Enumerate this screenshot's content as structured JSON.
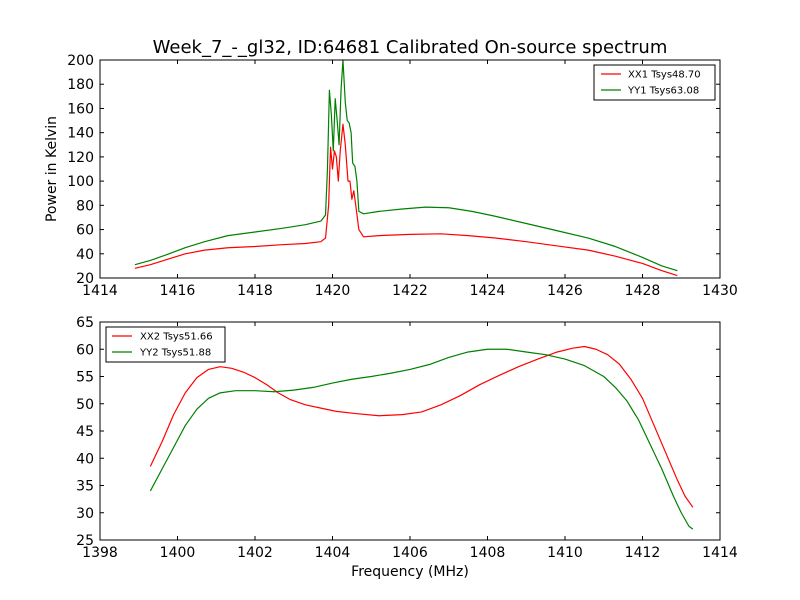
{
  "chart_data": [
    {
      "type": "line",
      "title": "Week_7_-_gl32, ID:64681 Calibrated On-source spectrum",
      "xlabel": "",
      "ylabel": "Power in Kelvin",
      "xlim": [
        1414,
        1430
      ],
      "ylim": [
        20,
        200
      ],
      "xticks": [
        1414,
        1416,
        1418,
        1420,
        1422,
        1424,
        1426,
        1428,
        1430
      ],
      "yticks": [
        20,
        40,
        60,
        80,
        100,
        120,
        140,
        160,
        180,
        200
      ],
      "grid": false,
      "legend": "top-right",
      "series": [
        {
          "name": "XX1 Tsys48.70",
          "color": "#ff0000",
          "points": [
            [
              1414.9,
              28
            ],
            [
              1415.3,
              31
            ],
            [
              1415.7,
              35
            ],
            [
              1416.2,
              40
            ],
            [
              1416.7,
              43
            ],
            [
              1417.3,
              45
            ],
            [
              1418.0,
              46
            ],
            [
              1418.7,
              47.5
            ],
            [
              1419.3,
              48.5
            ],
            [
              1419.7,
              50
            ],
            [
              1419.82,
              53
            ],
            [
              1419.9,
              80
            ],
            [
              1419.95,
              128
            ],
            [
              1420.0,
              110
            ],
            [
              1420.05,
              125
            ],
            [
              1420.1,
              120
            ],
            [
              1420.15,
              100
            ],
            [
              1420.2,
              125
            ],
            [
              1420.27,
              147
            ],
            [
              1420.33,
              130
            ],
            [
              1420.4,
              100
            ],
            [
              1420.45,
              100
            ],
            [
              1420.5,
              85
            ],
            [
              1420.55,
              92
            ],
            [
              1420.6,
              80
            ],
            [
              1420.68,
              60
            ],
            [
              1420.8,
              54
            ],
            [
              1421.2,
              55
            ],
            [
              1422.0,
              56
            ],
            [
              1422.8,
              56.5
            ],
            [
              1423.5,
              55
            ],
            [
              1424.2,
              53
            ],
            [
              1425.0,
              50
            ],
            [
              1425.8,
              46.5
            ],
            [
              1426.6,
              43
            ],
            [
              1427.3,
              38
            ],
            [
              1428.0,
              32
            ],
            [
              1428.5,
              26
            ],
            [
              1428.9,
              22
            ]
          ]
        },
        {
          "name": "YY1 Tsys63.08",
          "color": "#008000",
          "points": [
            [
              1414.9,
              31
            ],
            [
              1415.3,
              34.5
            ],
            [
              1415.7,
              39
            ],
            [
              1416.2,
              45
            ],
            [
              1416.7,
              50
            ],
            [
              1417.3,
              55
            ],
            [
              1418.0,
              58
            ],
            [
              1418.7,
              61
            ],
            [
              1419.3,
              64
            ],
            [
              1419.7,
              67
            ],
            [
              1419.82,
              72
            ],
            [
              1419.87,
              110
            ],
            [
              1419.92,
              175
            ],
            [
              1419.97,
              155
            ],
            [
              1420.02,
              125
            ],
            [
              1420.07,
              168
            ],
            [
              1420.12,
              150
            ],
            [
              1420.17,
              130
            ],
            [
              1420.22,
              175
            ],
            [
              1420.27,
              200
            ],
            [
              1420.33,
              165
            ],
            [
              1420.38,
              150
            ],
            [
              1420.43,
              148
            ],
            [
              1420.48,
              140
            ],
            [
              1420.52,
              115
            ],
            [
              1420.58,
              112
            ],
            [
              1420.63,
              100
            ],
            [
              1420.68,
              75
            ],
            [
              1420.8,
              73
            ],
            [
              1421.2,
              75
            ],
            [
              1421.8,
              77
            ],
            [
              1422.4,
              78.5
            ],
            [
              1423.0,
              78
            ],
            [
              1423.6,
              75
            ],
            [
              1424.2,
              71
            ],
            [
              1425.0,
              65
            ],
            [
              1425.8,
              59
            ],
            [
              1426.6,
              53
            ],
            [
              1427.3,
              46
            ],
            [
              1428.0,
              37
            ],
            [
              1428.5,
              30
            ],
            [
              1428.9,
              26
            ]
          ]
        }
      ]
    },
    {
      "type": "line",
      "title": "",
      "xlabel": "Frequency (MHz)",
      "ylabel": "",
      "xlim": [
        1398,
        1414
      ],
      "ylim": [
        25,
        65
      ],
      "xticks": [
        1398,
        1400,
        1402,
        1404,
        1406,
        1408,
        1410,
        1412,
        1414
      ],
      "yticks": [
        25,
        30,
        35,
        40,
        45,
        50,
        55,
        60,
        65
      ],
      "grid": false,
      "legend": "top-left",
      "series": [
        {
          "name": "XX2 Tsys51.66",
          "color": "#ff0000",
          "points": [
            [
              1399.3,
              38.5
            ],
            [
              1399.6,
              43
            ],
            [
              1399.9,
              48
            ],
            [
              1400.2,
              52
            ],
            [
              1400.5,
              54.8
            ],
            [
              1400.8,
              56.3
            ],
            [
              1401.1,
              56.8
            ],
            [
              1401.4,
              56.5
            ],
            [
              1401.7,
              55.8
            ],
            [
              1402.0,
              54.8
            ],
            [
              1402.3,
              53.5
            ],
            [
              1402.6,
              52
            ],
            [
              1402.9,
              50.8
            ],
            [
              1403.3,
              49.8
            ],
            [
              1403.7,
              49.2
            ],
            [
              1404.1,
              48.6
            ],
            [
              1404.6,
              48.2
            ],
            [
              1405.2,
              47.8
            ],
            [
              1405.8,
              48
            ],
            [
              1406.3,
              48.5
            ],
            [
              1406.8,
              49.8
            ],
            [
              1407.3,
              51.5
            ],
            [
              1407.8,
              53.5
            ],
            [
              1408.3,
              55.2
            ],
            [
              1408.8,
              56.8
            ],
            [
              1409.3,
              58.2
            ],
            [
              1409.8,
              59.5
            ],
            [
              1410.2,
              60.2
            ],
            [
              1410.5,
              60.5
            ],
            [
              1410.8,
              60
            ],
            [
              1411.1,
              59
            ],
            [
              1411.4,
              57.3
            ],
            [
              1411.7,
              54.5
            ],
            [
              1412.0,
              51
            ],
            [
              1412.3,
              46
            ],
            [
              1412.6,
              41
            ],
            [
              1412.9,
              36
            ],
            [
              1413.1,
              33
            ],
            [
              1413.3,
              31
            ]
          ]
        },
        {
          "name": "YY2 Tsys51.88",
          "color": "#008000",
          "points": [
            [
              1399.3,
              34
            ],
            [
              1399.6,
              38
            ],
            [
              1399.9,
              42
            ],
            [
              1400.2,
              46
            ],
            [
              1400.5,
              49
            ],
            [
              1400.8,
              51
            ],
            [
              1401.1,
              52
            ],
            [
              1401.5,
              52.4
            ],
            [
              1402.0,
              52.4
            ],
            [
              1402.5,
              52.2
            ],
            [
              1403.0,
              52.5
            ],
            [
              1403.5,
              53
            ],
            [
              1404.0,
              53.8
            ],
            [
              1404.5,
              54.5
            ],
            [
              1405.0,
              55
            ],
            [
              1405.5,
              55.6
            ],
            [
              1406.0,
              56.3
            ],
            [
              1406.5,
              57.2
            ],
            [
              1407.0,
              58.5
            ],
            [
              1407.5,
              59.5
            ],
            [
              1408.0,
              60
            ],
            [
              1408.5,
              60
            ],
            [
              1409.0,
              59.5
            ],
            [
              1409.5,
              59
            ],
            [
              1410.0,
              58.2
            ],
            [
              1410.5,
              57
            ],
            [
              1411.0,
              55
            ],
            [
              1411.3,
              53
            ],
            [
              1411.6,
              50.5
            ],
            [
              1411.9,
              47
            ],
            [
              1412.2,
              42.5
            ],
            [
              1412.5,
              38
            ],
            [
              1412.8,
              33
            ],
            [
              1413.0,
              30
            ],
            [
              1413.2,
              27.5
            ],
            [
              1413.3,
              27
            ]
          ]
        }
      ]
    }
  ]
}
